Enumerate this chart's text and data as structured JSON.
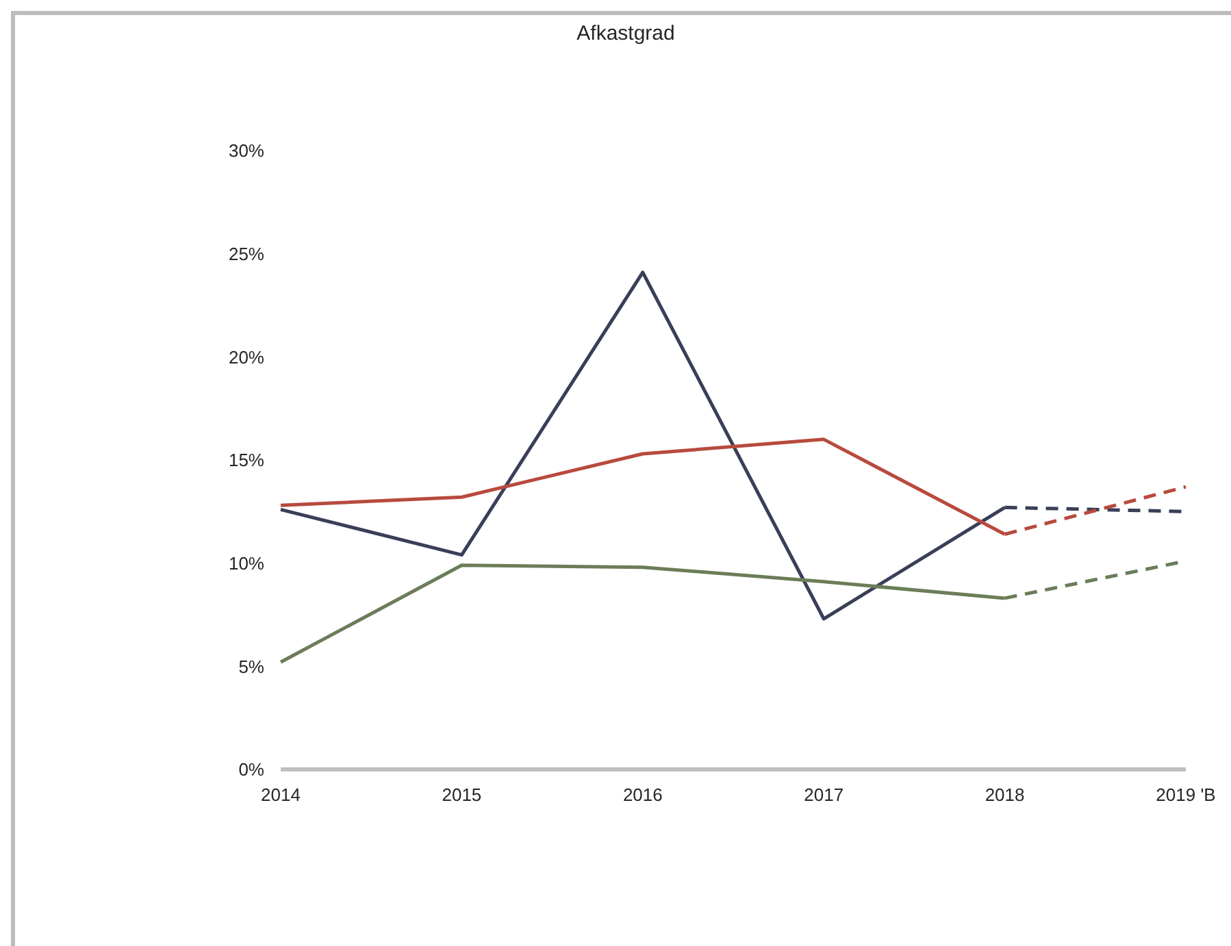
{
  "chart_data": {
    "type": "line",
    "title": "Afkastgrad",
    "categories": [
      "2014",
      "2015",
      "2016",
      "2017",
      "2018",
      "2019 'B"
    ],
    "ylim": [
      0,
      30
    ],
    "yticks": [
      {
        "value": 0,
        "label": "0%"
      },
      {
        "value": 5,
        "label": "5%"
      },
      {
        "value": 10,
        "label": "10%"
      },
      {
        "value": 15,
        "label": "15%"
      },
      {
        "value": 20,
        "label": "20%"
      },
      {
        "value": 25,
        "label": "25%"
      },
      {
        "value": 30,
        "label": "30%"
      }
    ],
    "marker": "none",
    "series": [
      {
        "color": "#3a3f58",
        "line_style": "solid",
        "values": [
          12.6,
          10.4,
          24.1,
          7.3,
          12.7,
          null
        ]
      },
      {
        "color": "#b84a3e",
        "line_style": "solid",
        "values": [
          12.8,
          13.2,
          15.3,
          16.0,
          11.4,
          null
        ]
      },
      {
        "color": "#6a7d58",
        "line_style": "solid",
        "values": [
          5.2,
          9.9,
          9.8,
          9.1,
          8.3,
          null
        ]
      },
      {
        "color": "#3a3f58",
        "line_style": "dashed",
        "values": [
          null,
          null,
          null,
          null,
          12.7,
          12.5
        ]
      },
      {
        "color": "#b84a3e",
        "line_style": "dashed",
        "values": [
          null,
          null,
          null,
          null,
          11.4,
          13.7
        ]
      },
      {
        "color": "#6a7d58",
        "line_style": "dashed",
        "values": [
          null,
          null,
          null,
          null,
          8.3,
          10.1
        ]
      }
    ]
  }
}
